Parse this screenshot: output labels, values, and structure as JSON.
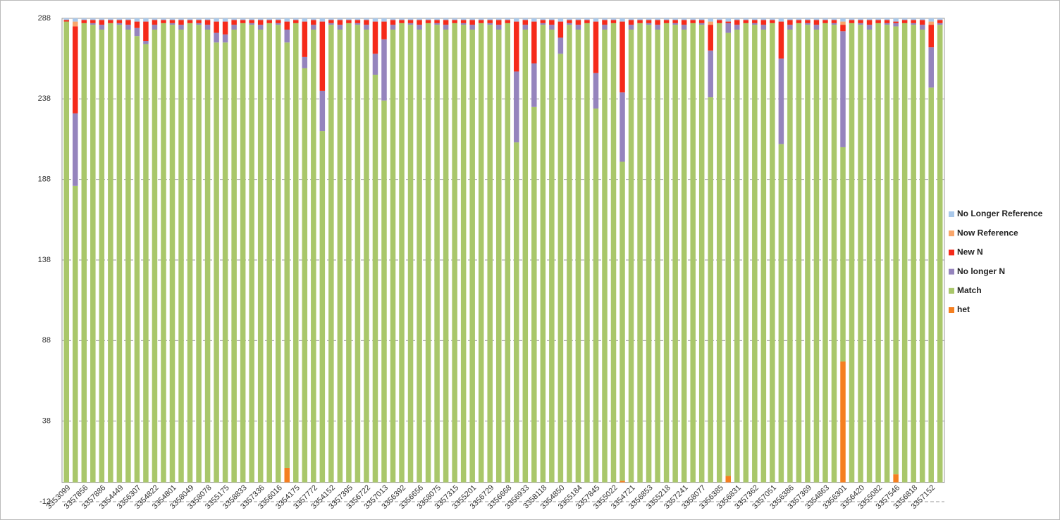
{
  "chart_data": {
    "type": "stacked_bar",
    "categories": [
      "3353099",
      null,
      "3357856",
      null,
      "3357886",
      null,
      "3354449",
      null,
      "3356307",
      null,
      "3354822",
      null,
      "3354801",
      null,
      "3358049",
      null,
      "3358078",
      null,
      "3355175",
      null,
      "3358833",
      null,
      "3357336",
      null,
      "3356016",
      null,
      "3354175",
      null,
      "3357772",
      null,
      "3354152",
      null,
      "3357395",
      null,
      "3356722",
      null,
      "3357013",
      null,
      "3356392",
      null,
      "3356656",
      null,
      "3358075",
      null,
      "3357315",
      null,
      "3355201",
      null,
      "3356729",
      null,
      "3356668",
      null,
      "3356933",
      null,
      "3358118",
      null,
      "3354850",
      null,
      "3355184",
      null,
      "3357845",
      null,
      "3355022",
      null,
      "3354721",
      null,
      "3356853",
      null,
      "3355218",
      null,
      "3357241",
      null,
      "3358077",
      null,
      "3356385",
      null,
      "3356831",
      null,
      "3357362",
      null,
      "3357051",
      null,
      "3356386",
      null,
      "3357369",
      null,
      "3354863",
      null,
      "3356301",
      null,
      "3356420",
      null,
      "3355082",
      null,
      "3357546",
      null,
      "3356818",
      null,
      "3357152",
      null
    ],
    "series": [
      {
        "name": "het",
        "color": "#f57f20",
        "values": [
          0,
          0,
          0,
          0,
          0,
          0,
          0,
          0,
          0,
          0,
          0,
          0,
          0,
          0,
          0,
          0,
          0,
          0,
          0,
          0,
          0,
          0,
          0,
          0,
          0,
          9,
          0,
          0,
          0,
          0,
          0,
          0,
          0,
          0,
          0,
          0,
          0,
          0,
          0,
          0,
          0,
          0,
          0,
          0,
          0,
          0,
          0,
          0,
          0,
          0,
          0,
          0,
          0,
          0,
          0,
          0,
          0,
          0,
          0,
          0,
          0,
          0,
          0,
          1,
          0,
          0,
          0,
          0,
          0,
          0,
          0,
          0,
          0,
          0,
          0,
          4,
          0,
          0,
          0,
          0,
          0,
          0,
          0,
          0,
          0,
          0,
          0,
          0,
          75,
          0,
          0,
          0,
          0,
          0,
          5,
          0,
          0,
          0,
          0,
          0
        ]
      },
      {
        "name": "Match",
        "color": "#a9c76a",
        "values": [
          286,
          184,
          285,
          284,
          281,
          285,
          284,
          281,
          277,
          272,
          281,
          285,
          284,
          281,
          285,
          284,
          281,
          273,
          273,
          281,
          285,
          284,
          281,
          285,
          284,
          264,
          285,
          257,
          281,
          218,
          284,
          281,
          285,
          284,
          281,
          253,
          237,
          281,
          285,
          284,
          281,
          285,
          284,
          281,
          285,
          284,
          281,
          285,
          284,
          281,
          285,
          211,
          281,
          233,
          284,
          281,
          266,
          284,
          281,
          285,
          232,
          281,
          285,
          198,
          281,
          285,
          284,
          281,
          285,
          284,
          281,
          285,
          284,
          239,
          285,
          275,
          281,
          285,
          284,
          281,
          285,
          210,
          281,
          285,
          284,
          281,
          285,
          284,
          133,
          285,
          284,
          281,
          285,
          284,
          278,
          285,
          284,
          281,
          245,
          284
        ]
      },
      {
        "name": "No longer N",
        "color": "#9584bd",
        "values": [
          0,
          45,
          0,
          1,
          3,
          0,
          1,
          3,
          5,
          2,
          3,
          0,
          1,
          3,
          0,
          1,
          3,
          6,
          5,
          3,
          0,
          1,
          3,
          0,
          1,
          8,
          0,
          7,
          3,
          25,
          1,
          3,
          0,
          1,
          3,
          13,
          38,
          3,
          0,
          1,
          3,
          0,
          1,
          3,
          0,
          1,
          3,
          0,
          1,
          3,
          0,
          44,
          3,
          27,
          1,
          3,
          10,
          1,
          3,
          0,
          22,
          3,
          0,
          43,
          3,
          0,
          1,
          3,
          0,
          1,
          3,
          0,
          1,
          29,
          0,
          6,
          3,
          0,
          1,
          3,
          0,
          53,
          3,
          0,
          1,
          3,
          0,
          1,
          72,
          0,
          1,
          3,
          0,
          1,
          2,
          0,
          1,
          3,
          25,
          1
        ]
      },
      {
        "name": "New N",
        "color": "#f52a1a",
        "values": [
          1,
          54,
          2,
          2,
          3,
          2,
          2,
          3,
          4,
          12,
          3,
          2,
          2,
          3,
          2,
          2,
          3,
          7,
          8,
          3,
          2,
          2,
          3,
          2,
          2,
          5,
          2,
          22,
          3,
          43,
          2,
          3,
          2,
          2,
          3,
          20,
          11,
          3,
          2,
          2,
          3,
          2,
          2,
          3,
          2,
          2,
          3,
          2,
          2,
          3,
          2,
          31,
          3,
          26,
          2,
          3,
          10,
          2,
          3,
          2,
          32,
          3,
          2,
          44,
          3,
          2,
          2,
          3,
          2,
          2,
          3,
          2,
          2,
          16,
          2,
          1,
          3,
          2,
          2,
          3,
          2,
          23,
          3,
          2,
          2,
          3,
          2,
          2,
          4,
          2,
          2,
          3,
          2,
          2,
          1,
          2,
          2,
          3,
          14,
          2
        ]
      },
      {
        "name": "Now Reference",
        "color": "#f9a66b",
        "values": [
          0,
          3,
          0,
          0,
          0,
          0,
          0,
          0,
          0,
          0,
          0,
          0,
          0,
          0,
          0,
          0,
          0,
          0,
          0,
          0,
          0,
          0,
          0,
          0,
          0,
          0,
          0,
          0,
          0,
          0,
          0,
          0,
          0,
          0,
          0,
          0,
          0,
          0,
          0,
          0,
          0,
          0,
          0,
          0,
          0,
          0,
          0,
          0,
          0,
          0,
          0,
          0,
          0,
          0,
          0,
          0,
          0,
          0,
          0,
          0,
          0,
          0,
          0,
          0,
          0,
          0,
          0,
          0,
          0,
          0,
          0,
          0,
          0,
          2,
          0,
          0,
          0,
          0,
          0,
          0,
          0,
          0,
          0,
          0,
          0,
          0,
          0,
          0,
          2,
          0,
          0,
          0,
          0,
          0,
          0,
          0,
          0,
          0,
          2,
          0
        ]
      },
      {
        "name": "No Longer Reference",
        "color": "#a9c8ea",
        "values": [
          1,
          2,
          1,
          1,
          1,
          1,
          1,
          1,
          2,
          2,
          1,
          1,
          1,
          1,
          1,
          1,
          1,
          2,
          2,
          1,
          1,
          1,
          1,
          1,
          1,
          2,
          1,
          2,
          1,
          2,
          1,
          1,
          1,
          1,
          1,
          2,
          2,
          1,
          1,
          1,
          1,
          1,
          1,
          1,
          1,
          1,
          1,
          1,
          1,
          1,
          1,
          2,
          1,
          2,
          1,
          1,
          2,
          1,
          1,
          1,
          2,
          1,
          1,
          2,
          1,
          1,
          1,
          1,
          1,
          1,
          1,
          1,
          1,
          2,
          1,
          2,
          1,
          1,
          1,
          1,
          1,
          2,
          1,
          1,
          1,
          1,
          1,
          1,
          2,
          1,
          1,
          1,
          1,
          1,
          2,
          1,
          1,
          1,
          2,
          1
        ]
      }
    ],
    "ylim": [
      -12,
      288
    ],
    "yticks": [
      -12,
      38,
      88,
      138,
      188,
      238,
      288
    ],
    "grid": true,
    "legend": "right"
  }
}
